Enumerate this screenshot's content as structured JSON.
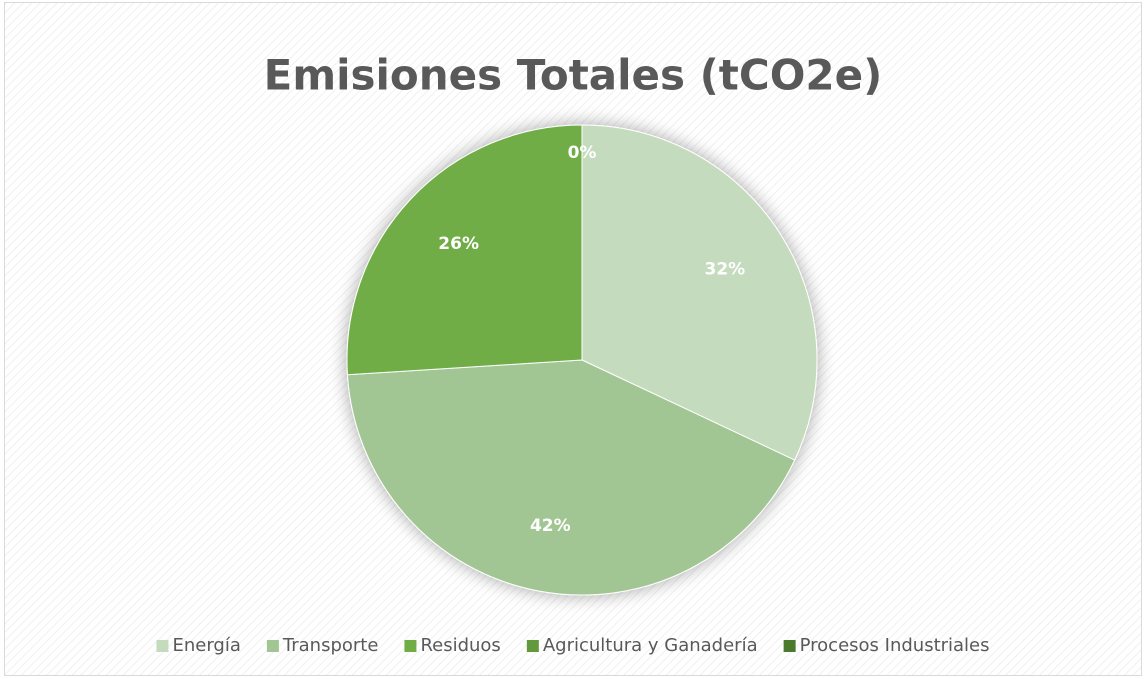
{
  "chart_data": {
    "type": "pie",
    "title": "Emisiones Totales (tCO2e)",
    "categories": [
      "Energía",
      "Transporte",
      "Residuos",
      "Agricultura y Ganadería",
      "Procesos Industriales"
    ],
    "values": [
      32,
      42,
      26,
      0,
      0
    ],
    "value_labels": [
      "32%",
      "42%",
      "26%",
      "0%",
      null
    ],
    "colors": [
      "#c5dbbd",
      "#a2c693",
      "#70ad47",
      "#62993d",
      "#4b7a2c"
    ],
    "legend": "bottom"
  }
}
